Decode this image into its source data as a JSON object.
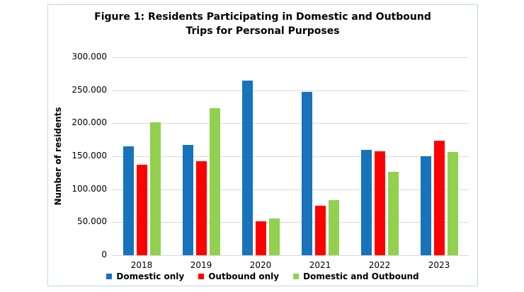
{
  "figure": {
    "title_line1": "Figure 1: Residents Participating in Domestic and Outbound",
    "title_line2": "Trips for Personal Purposes"
  },
  "chart_data": {
    "type": "bar",
    "title": "Figure 1: Residents Participating in Domestic and Outbound Trips for Personal Purposes",
    "xlabel": "",
    "ylabel": "Number of residents",
    "categories": [
      "2018",
      "2019",
      "2020",
      "2021",
      "2022",
      "2023"
    ],
    "series": [
      {
        "name": "Domestic only",
        "color": "#1673BC",
        "values": [
          165000,
          167000,
          265000,
          248000,
          160000,
          150000
        ]
      },
      {
        "name": "Outbound only",
        "color": "#FE0000",
        "values": [
          137000,
          143000,
          51000,
          75000,
          157000,
          174000
        ]
      },
      {
        "name": "Domestic and Outbound",
        "color": "#92D050",
        "values": [
          201000,
          223000,
          56000,
          84000,
          126000,
          156000
        ]
      }
    ],
    "ylim": [
      0,
      300000
    ],
    "ytick_step": 50000,
    "ytick_labels": [
      "0",
      "50.000",
      "100.000",
      "150.000",
      "200.000",
      "250.000",
      "300.000"
    ],
    "grid": true,
    "legend_position": "bottom",
    "colors": {
      "gridline": "#D9D9D9",
      "box_border": "#BDD7EE",
      "text": "#000000"
    }
  }
}
